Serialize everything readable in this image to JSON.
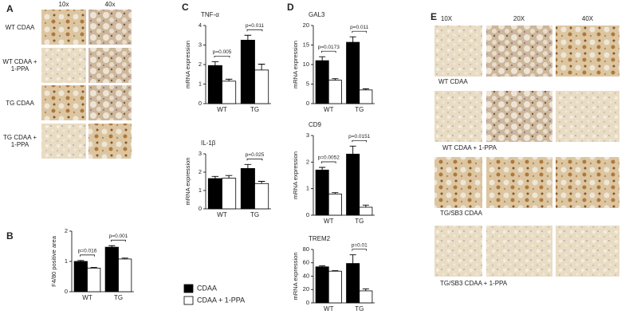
{
  "panel_letters": [
    "A",
    "B",
    "C",
    "D",
    "E"
  ],
  "panel_a": {
    "columns": [
      "10x",
      "40x"
    ],
    "rows": [
      "WT CDAA",
      "WT CDAA + 1-PPA",
      "TG CDAA",
      "TG CDAA + 1-PPA"
    ]
  },
  "panel_e": {
    "columns": [
      "10X",
      "20X",
      "40X"
    ],
    "rows": [
      "WT CDAA",
      "WT CDAA + 1-PPA",
      "TG/SB3 CDAA",
      "TG/SB3 CDAA + 1-PPA"
    ]
  },
  "legend": [
    {
      "name": "CDAA",
      "color": "#000000"
    },
    {
      "name": "CDAA + 1-PPA",
      "color": "#ffffff"
    }
  ],
  "chart_data": [
    {
      "type": "bar",
      "ylabel": "F4/80 positive area",
      "categories": [
        "WT",
        "TG"
      ],
      "series": [
        {
          "color": "#000000",
          "values": [
            1.0,
            1.47
          ],
          "errors": [
            0.03,
            0.05
          ]
        },
        {
          "color": "#ffffff",
          "values": [
            0.78,
            1.08
          ],
          "errors": [
            0.02,
            0.03
          ]
        }
      ],
      "pvalues": [
        "p=0.016",
        "p=0.001"
      ],
      "ylim": [
        0,
        2
      ],
      "yticks": [
        0,
        1,
        2
      ]
    },
    {
      "type": "bar",
      "title": "TNF-α",
      "ylabel": "mRNA expression",
      "categories": [
        "WT",
        "TG"
      ],
      "series": [
        {
          "color": "#000000",
          "values": [
            1.95,
            3.25
          ],
          "errors": [
            0.2,
            0.25
          ]
        },
        {
          "color": "#ffffff",
          "values": [
            1.15,
            1.72
          ],
          "errors": [
            0.1,
            0.3
          ]
        }
      ],
      "pvalues": [
        "p=0.005",
        "p=0.011"
      ],
      "ylim": [
        0,
        4
      ],
      "yticks": [
        0,
        1,
        2,
        3,
        4
      ]
    },
    {
      "type": "bar",
      "title": "IL-1β",
      "ylabel": "mRNA expression",
      "categories": [
        "WT",
        "TG"
      ],
      "series": [
        {
          "color": "#000000",
          "values": [
            1.65,
            2.2
          ],
          "errors": [
            0.12,
            0.22
          ]
        },
        {
          "color": "#ffffff",
          "values": [
            1.67,
            1.38
          ],
          "errors": [
            0.15,
            0.12
          ]
        }
      ],
      "pvalues": [
        null,
        "p=0.025"
      ],
      "ylim": [
        0,
        3
      ],
      "yticks": [
        0,
        1,
        2,
        3
      ]
    },
    {
      "type": "bar",
      "title": "GAL3",
      "ylabel": "mRNA expression",
      "categories": [
        "WT",
        "TG"
      ],
      "series": [
        {
          "color": "#000000",
          "values": [
            11,
            15.7
          ],
          "errors": [
            1,
            1.4
          ]
        },
        {
          "color": "#ffffff",
          "values": [
            6,
            3.5
          ],
          "errors": [
            0.4,
            0.3
          ]
        }
      ],
      "pvalues": [
        "p=0.0173",
        "p=0.011"
      ],
      "ylim": [
        0,
        20
      ],
      "yticks": [
        0,
        5,
        10,
        15,
        20
      ]
    },
    {
      "type": "bar",
      "title": "CD9",
      "ylabel": "mRNA expression",
      "categories": [
        "WT",
        "TG"
      ],
      "series": [
        {
          "color": "#000000",
          "values": [
            1.7,
            2.3
          ],
          "errors": [
            0.1,
            0.3
          ]
        },
        {
          "color": "#ffffff",
          "values": [
            0.8,
            0.3
          ],
          "errors": [
            0.05,
            0.08
          ]
        }
      ],
      "pvalues": [
        "p=0.0052",
        "p=0.0151"
      ],
      "ylim": [
        0,
        3
      ],
      "yticks": [
        0,
        1,
        2,
        3
      ]
    },
    {
      "type": "bar",
      "title": "TREM2",
      "ylabel": "mRNA expression",
      "categories": [
        "WT",
        "TG"
      ],
      "series": [
        {
          "color": "#000000",
          "values": [
            54,
            59
          ],
          "errors": [
            1.5,
            13
          ]
        },
        {
          "color": "#ffffff",
          "values": [
            47.5,
            18
          ],
          "errors": [
            0.8,
            3
          ]
        }
      ],
      "pvalues": [
        null,
        "p=0.01"
      ],
      "ylim": [
        0,
        80
      ],
      "yticks": [
        0,
        20,
        40,
        60,
        80
      ]
    }
  ]
}
